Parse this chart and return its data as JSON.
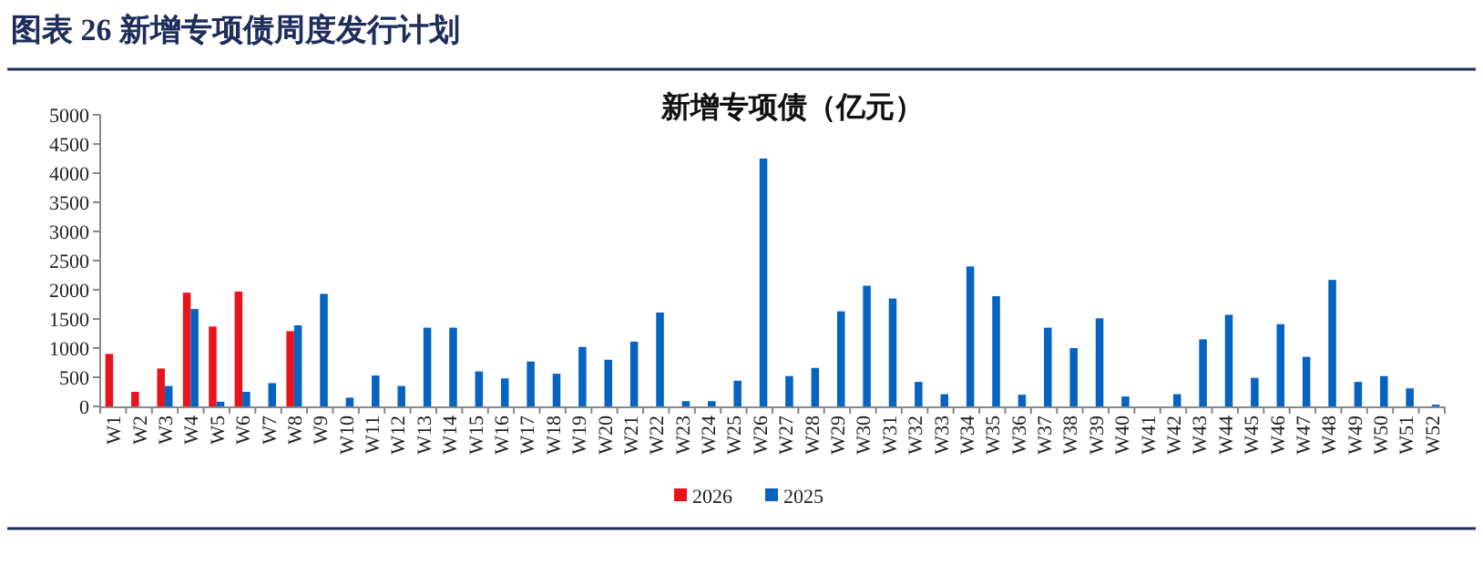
{
  "chart_data": {
    "type": "bar",
    "title": "图表 26   新增专项债周度发行计划",
    "subtitle": "新增专项债（亿元）",
    "categories": [
      "W1",
      "W2",
      "W3",
      "W4",
      "W5",
      "W6",
      "W7",
      "W8",
      "W9",
      "W10",
      "W11",
      "W12",
      "W13",
      "W14",
      "W15",
      "W16",
      "W17",
      "W18",
      "W19",
      "W20",
      "W21",
      "W22",
      "W23",
      "W24",
      "W25",
      "W26",
      "W27",
      "W28",
      "W29",
      "W30",
      "W31",
      "W32",
      "W33",
      "W34",
      "W35",
      "W36",
      "W37",
      "W38",
      "W39",
      "W40",
      "W41",
      "W42",
      "W43",
      "W44",
      "W45",
      "W46",
      "W47",
      "W48",
      "W49",
      "W50",
      "W51",
      "W52"
    ],
    "series": [
      {
        "name": "2026",
        "color": "#e8141b",
        "values": [
          900,
          250,
          650,
          1950,
          1370,
          1970,
          null,
          1290,
          null,
          null,
          null,
          null,
          null,
          null,
          null,
          null,
          null,
          null,
          null,
          null,
          null,
          null,
          null,
          null,
          null,
          null,
          null,
          null,
          null,
          null,
          null,
          null,
          null,
          null,
          null,
          null,
          null,
          null,
          null,
          null,
          null,
          null,
          null,
          null,
          null,
          null,
          null,
          null,
          null,
          null,
          null,
          null
        ]
      },
      {
        "name": "2025",
        "color": "#0563c1",
        "values": [
          null,
          null,
          350,
          1670,
          80,
          250,
          400,
          1390,
          1930,
          150,
          530,
          350,
          1350,
          1350,
          600,
          480,
          770,
          560,
          1020,
          800,
          1110,
          1610,
          90,
          90,
          440,
          4250,
          520,
          660,
          1630,
          2070,
          1850,
          420,
          210,
          2400,
          1890,
          200,
          1350,
          1000,
          1510,
          170,
          0,
          210,
          1150,
          1570,
          490,
          1410,
          850,
          2170,
          420,
          520,
          310,
          30
        ]
      }
    ],
    "ylim": [
      0,
      5000
    ],
    "yticks": [
      0,
      500,
      1000,
      1500,
      2000,
      2500,
      3000,
      3500,
      4000,
      4500,
      5000
    ],
    "grid": false,
    "legend": "bottom"
  }
}
